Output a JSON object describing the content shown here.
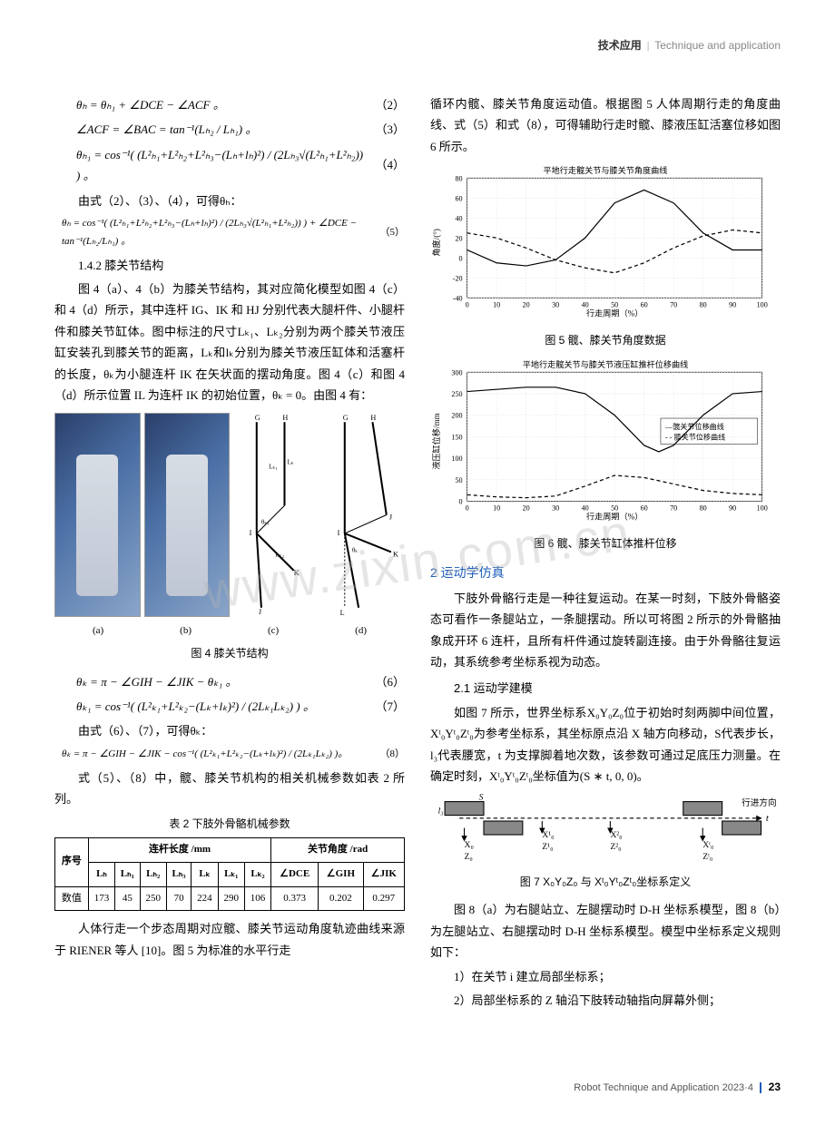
{
  "header": {
    "cn": "技术应用",
    "en": "Technique and application"
  },
  "eq2": {
    "text": "θₕ = θₕ₁ + ∠DCE − ∠ACF 。",
    "num": "（2）"
  },
  "eq3": {
    "text": "∠ACF = ∠BAC = tan⁻¹(Lₕ₂ / Lₕ₁) 。",
    "num": "（3）"
  },
  "eq4": {
    "text": "θₕ₁ = cos⁻¹( (L²ₕ₁+L²ₕ₂+L²ₕ₃−(Lₕ+lₕ)²) / (2Lₕ₃√(L²ₕ₁+L²ₕ₂)) ) 。",
    "num": "（4）"
  },
  "p_deriv1": "由式（2）、（3）、（4），可得θₕ：",
  "eq5": {
    "text": "θₕ = cos⁻¹( (L²ₕ₁+L²ₕ₂+L²ₕ₃−(Lₕ+lₕ)²) / (2Lₕ₃√(L²ₕ₁+L²ₕ₂)) ) + ∠DCE − tan⁻¹(Lₕ₂/Lₕ₁) 。",
    "num": "（5）"
  },
  "sec142": "1.4.2 膝关节结构",
  "p_knee1": "图 4（a）、4（b）为膝关节结构，其对应简化模型如图 4（c）和 4（d）所示，其中连杆 IG、IK 和 HJ 分别代表大腿杆件、小腿杆件和膝关节缸体。图中标注的尺寸Lₖ₁、Lₖ₂分别为两个膝关节液压缸安装孔到膝关节的距离，Lₖ和lₖ分别为膝关节液压缸体和活塞杆的长度，θₖ为小腿连杆 IK 在矢状面的摆动角度。图 4（c）和图 4（d）所示位置 IL 为连杆 IK 的初始位置，θₖ = 0。由图 4 有：",
  "fig4cap": "图 4 膝关节结构",
  "sublabels": {
    "a": "(a)",
    "b": "(b)",
    "c": "(c)",
    "d": "(d)"
  },
  "eq6": {
    "text": "θₖ = π − ∠GIH − ∠JIK − θₖ₁ 。",
    "num": "（6）"
  },
  "eq7": {
    "text": "θₖ₁ = cos⁻¹( (L²ₖ₁+L²ₖ₂−(Lₖ+lₖ)²) / (2Lₖ₁Lₖ₂) ) 。",
    "num": "（7）"
  },
  "p_deriv2": "由式（6）、（7），可得θₖ：",
  "eq8": {
    "text": "θₖ = π − ∠GIH − ∠JIK − cos⁻¹( (L²ₖ₁+L²ₖ₂−(Lₖ+lₖ)²) / (2Lₖ₁Lₖ₂) )。",
    "num": "（8）"
  },
  "p_tab": "式（5）、（8）中，髋、膝关节机构的相关机械参数如表 2 所列。",
  "tab2cap": "表 2 下肢外骨骼机械参数",
  "table": {
    "group1": "连杆长度 /mm",
    "group2": "关节角度 /rad",
    "cols": [
      "序号",
      "Lₕ",
      "Lₕ₁",
      "Lₕ₂",
      "Lₕ₃",
      "Lₖ",
      "Lₖ₁",
      "Lₖ₂",
      "∠DCE",
      "∠GIH",
      "∠JIK"
    ],
    "row": [
      "数值",
      "173",
      "45",
      "250",
      "70",
      "224",
      "290",
      "106",
      "0.373",
      "0.202",
      "0.297"
    ]
  },
  "p_gait": "人体行走一个步态周期对应髋、膝关节运动角度轨迹曲线来源于 RIENER 等人 [10]。图 5 为标准的水平行走",
  "p_col2top": "循环内髋、膝关节角度运动值。根据图 5 人体周期行走的角度曲线、式（5）和式（8），可得辅助行走时髋、膝液压缸活塞位移如图 6 所示。",
  "chart5": {
    "title_cn": "平地行走髋关节与膝关节角度曲线",
    "ylabel": "角度/(°)",
    "xlabel": "行走周期（%）",
    "yticks": [
      -40,
      -20,
      0,
      20,
      40,
      60,
      80
    ],
    "xticks": [
      0,
      10,
      20,
      30,
      40,
      50,
      60,
      70,
      80,
      90,
      100
    ],
    "grid": "#d0d0d0",
    "solid": "#000",
    "dashed": "#000",
    "bg": "#ffffff",
    "series_solid": [
      [
        0,
        8
      ],
      [
        10,
        -5
      ],
      [
        20,
        -8
      ],
      [
        30,
        -2
      ],
      [
        40,
        20
      ],
      [
        50,
        55
      ],
      [
        60,
        68
      ],
      [
        70,
        55
      ],
      [
        80,
        25
      ],
      [
        90,
        8
      ],
      [
        100,
        8
      ]
    ],
    "series_dashed": [
      [
        0,
        25
      ],
      [
        10,
        20
      ],
      [
        20,
        10
      ],
      [
        30,
        -2
      ],
      [
        40,
        -10
      ],
      [
        50,
        -15
      ],
      [
        60,
        -5
      ],
      [
        70,
        10
      ],
      [
        80,
        22
      ],
      [
        90,
        28
      ],
      [
        100,
        25
      ]
    ]
  },
  "fig5cap": "图 5 髋、膝关节角度数据",
  "chart6": {
    "title_cn": "平地行走髋关节与膝关节液压缸推杆位移曲线",
    "ylabel": "液压缸位移/mm",
    "xlabel": "行走周期（%）",
    "yticks": [
      0,
      50,
      100,
      150,
      200,
      250,
      300
    ],
    "xticks": [
      0,
      10,
      20,
      30,
      40,
      50,
      60,
      70,
      80,
      90,
      100
    ],
    "legend": [
      "—髋关节位移曲线",
      "- - 膝关节位移曲线"
    ],
    "grid": "#d0d0d0",
    "series_solid": [
      [
        0,
        255
      ],
      [
        10,
        260
      ],
      [
        20,
        265
      ],
      [
        30,
        265
      ],
      [
        40,
        250
      ],
      [
        50,
        200
      ],
      [
        60,
        130
      ],
      [
        65,
        115
      ],
      [
        70,
        130
      ],
      [
        80,
        200
      ],
      [
        90,
        250
      ],
      [
        100,
        255
      ]
    ],
    "series_dashed": [
      [
        0,
        15
      ],
      [
        10,
        10
      ],
      [
        20,
        8
      ],
      [
        30,
        12
      ],
      [
        40,
        35
      ],
      [
        50,
        60
      ],
      [
        60,
        55
      ],
      [
        70,
        40
      ],
      [
        80,
        25
      ],
      [
        90,
        18
      ],
      [
        100,
        15
      ]
    ]
  },
  "fig6cap": "图 6 髋、膝关节缸体推杆位移",
  "sec2": "2 运动学仿真",
  "p_kine": "下肢外骨骼行走是一种往复运动。在某一时刻，下肢外骨骼姿态可看作一条腿站立，一条腿摆动。所以可将图 2 所示的外骨骼抽象成开环 6 连杆，且所有杆件通过旋转副连接。由于外骨骼往复运动，其系统参考坐标系视为动态。",
  "sec21": "2.1 运动学建模",
  "p_kine2": "如图 7 所示，世界坐标系X₀Y₀Z₀位于初始时刻两脚中间位置，Xᵗ₀Yᵗ₀Zᵗ₀为参考坐标系，其坐标原点沿 X 轴方向移动，S代表步长，l₃代表腰宽，t 为支撑脚着地次数，该参数可通过足底压力测量。在确定时刻，Xᵗ₀Yᵗ₀Zᵗ₀坐标值为(S ∗ t, 0, 0)。",
  "fig7cap": "图 7 X₀Y₀Z₀ 与 Xᵗ₀Yᵗ₀Zᵗ₀坐标系定义",
  "p_fig8": "图 8（a）为右腿站立、左腿摆动时 D-H 坐标系模型，图 8（b）为左腿站立、右腿摆动时 D-H 坐标系模型。模型中坐标系定义规则如下：",
  "li1": "1）在关节 i 建立局部坐标系；",
  "li2": "2）局部坐标系的 Z 轴沿下肢转动轴指向屏幕外侧；",
  "watermark": "www.zixin.com.cn",
  "footer": {
    "journal": "Robot Technique and Application",
    "issue": "2023·4",
    "page": "23"
  }
}
